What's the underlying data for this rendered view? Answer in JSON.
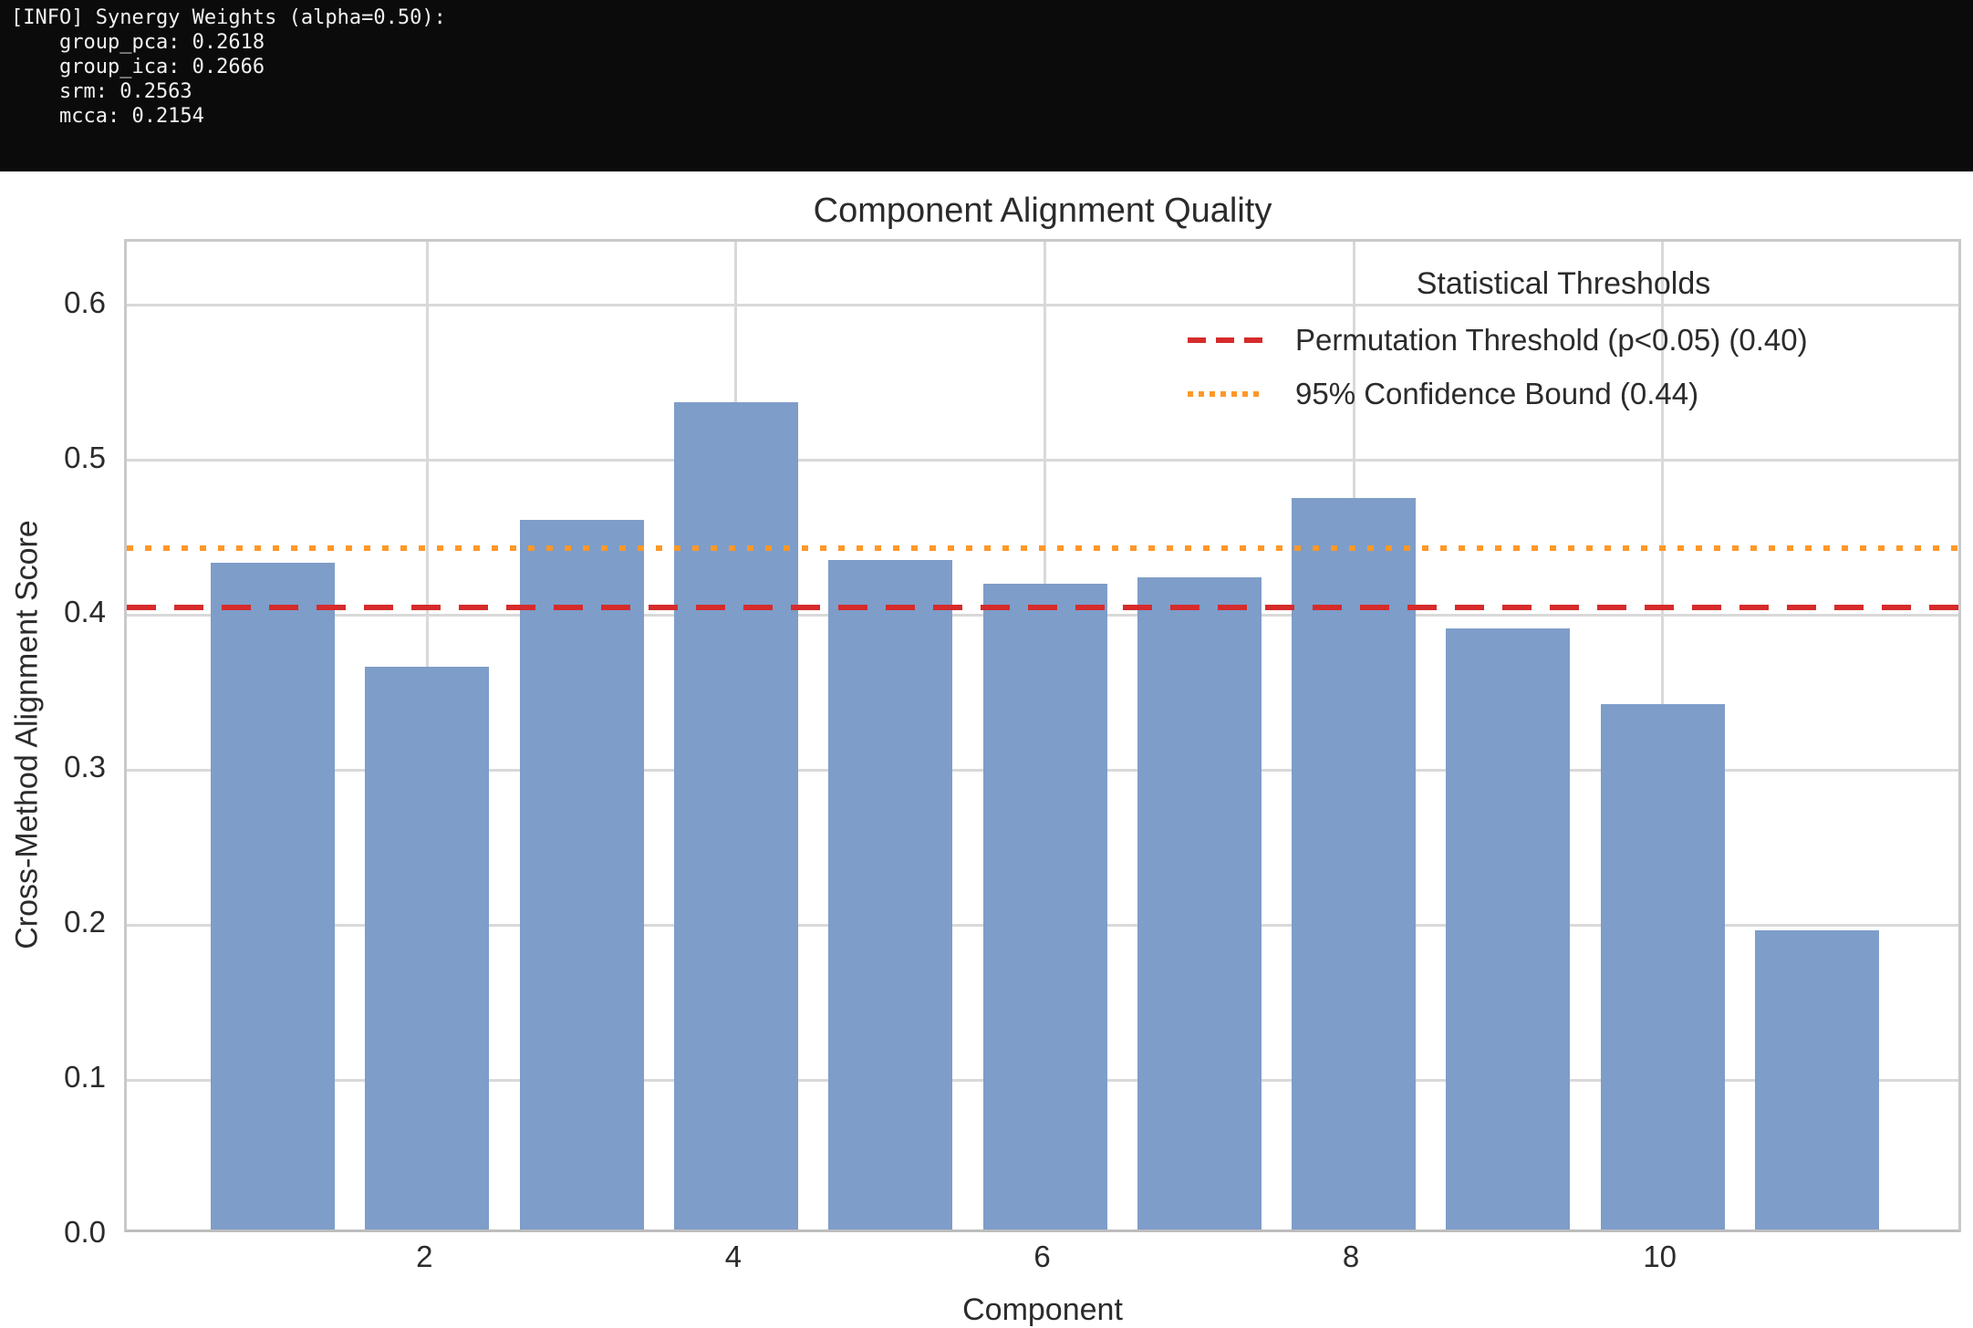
{
  "terminal": {
    "lines": [
      "[INFO] Synergy Weights (alpha=0.50):",
      "    group_pca: 0.2618",
      "    group_ica: 0.2666",
      "    srm: 0.2563",
      "    mcca: 0.2154"
    ]
  },
  "chart_data": {
    "type": "bar",
    "title": "Component Alignment Quality",
    "xlabel": "Component",
    "ylabel": "Cross-Method Alignment Score",
    "categories": [
      1,
      2,
      3,
      4,
      5,
      6,
      7,
      8,
      9,
      10,
      11
    ],
    "values": [
      0.43,
      0.363,
      0.458,
      0.534,
      0.432,
      0.417,
      0.421,
      0.472,
      0.388,
      0.339,
      0.193
    ],
    "bar_color": "#7e9dc9",
    "xticks": [
      2,
      4,
      6,
      8,
      10
    ],
    "yticks": [
      0.0,
      0.1,
      0.2,
      0.3,
      0.4,
      0.5,
      0.6
    ],
    "ylim": [
      0,
      0.641
    ],
    "grid": true,
    "background": "#ffffff",
    "grid_color": "#d9d9d9",
    "text_color": "#2b2b2b",
    "legend": {
      "title": "Statistical Thresholds",
      "position": "upper right",
      "entries": [
        {
          "label": "Permutation Threshold (p<0.05) (0.40)",
          "style": "dashed",
          "color": "#d62b2b",
          "value": 0.405
        },
        {
          "label": "95% Confidence Bound (0.44)",
          "style": "dotted",
          "color": "#ff9828",
          "value": 0.443
        }
      ]
    }
  }
}
